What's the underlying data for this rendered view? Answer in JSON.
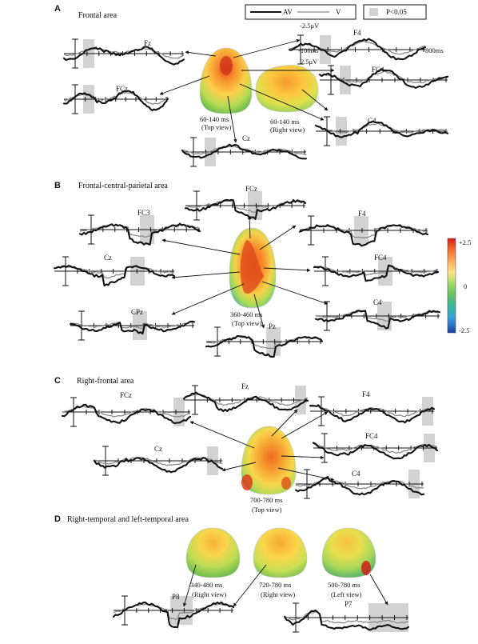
{
  "panels": [
    {
      "letter": "A",
      "title": "Frontal area",
      "electrodes": [
        "Fz",
        "FCz",
        "F4",
        "FC4",
        "C4",
        "Cz"
      ],
      "maps": [
        {
          "window": "60-140 ms",
          "view": "(Top view)"
        },
        {
          "window": "60-140 ms",
          "view": "(Right view)"
        }
      ]
    },
    {
      "letter": "B",
      "title": "Frontal-central-parietal  area",
      "electrodes": [
        "FCz",
        "FC3",
        "F4",
        "Cz",
        "FC4",
        "CPz",
        "C4",
        "Pz"
      ],
      "maps": [
        {
          "window": "360-460 ms",
          "view": "(Top view)"
        }
      ]
    },
    {
      "letter": "C",
      "title": "Right-frontal area",
      "electrodes": [
        "Fz",
        "FCz",
        "F4",
        "FC4",
        "Cz",
        "C4"
      ],
      "maps": [
        {
          "window": "700-780 ms",
          "view": "(Top view)"
        }
      ]
    },
    {
      "letter": "D",
      "title": "Right-temporal and left-temporal area",
      "electrodes": [
        "P8",
        "P7"
      ],
      "maps": [
        {
          "window": "340-480 ms",
          "view": "(Right view)"
        },
        {
          "window": "720-780 ms",
          "view": "(Right view)"
        },
        {
          "window": "500-780 ms",
          "view": "(Left view)"
        }
      ]
    }
  ],
  "legend": {
    "av": "AV",
    "v": "V",
    "sig": "P<0.05"
  },
  "scale": {
    "amp_neg": "-2.5μV",
    "amp_pos": "2.5μV",
    "time_start": "-100ms",
    "time_end": "800ms"
  },
  "colorbar": {
    "max": "+2.5",
    "mid": "0",
    "min": "-2.5"
  },
  "colors": {
    "av": "#111111",
    "v": "#8a8a8a",
    "sig": "#d2d2d2",
    "cbar": [
      "#d7191c",
      "#f46d2a",
      "#fdae61",
      "#fee08b",
      "#a6d96a",
      "#66bd63",
      "#39b5a0",
      "#3a9fd6",
      "#2b6cc4",
      "#1b3c9e"
    ]
  }
}
